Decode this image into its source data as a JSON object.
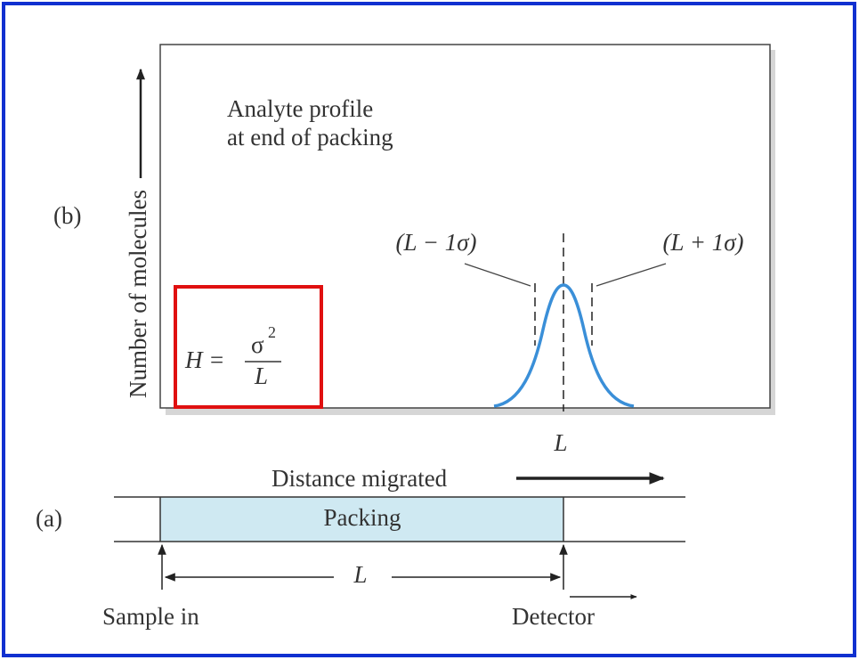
{
  "panel_b": {
    "label": "(b)",
    "title_lines": [
      "Analyte profile",
      "at end of packing"
    ],
    "y_axis_label": "Number of molecules",
    "left_marker": "(L − 1σ)",
    "right_marker": "(L + 1σ)",
    "center_label": "L"
  },
  "formula": {
    "lhs": "H =",
    "numerator": "σ",
    "exponent": "2",
    "denominator": "L"
  },
  "panel_a": {
    "label": "(a)",
    "axis_label": "Distance migrated",
    "packing": "Packing",
    "length_label": "L",
    "inlet": "Sample in",
    "outlet": "Detector"
  }
}
